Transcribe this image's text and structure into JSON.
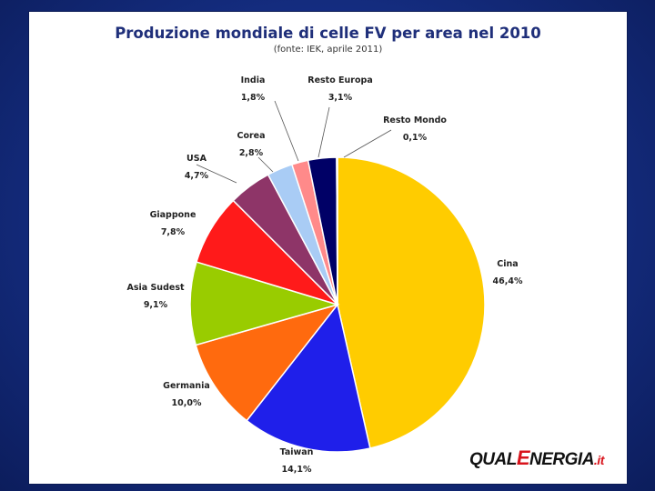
{
  "chart_data": {
    "type": "pie",
    "title": "Produzione mondiale di celle FV per area nel 2010",
    "subtitle": "(fonte: IEK, aprile 2011)",
    "slices": [
      {
        "name": "Cina",
        "value": 46.4,
        "label": "46,4%",
        "color": "#FFCC00"
      },
      {
        "name": "Taiwan",
        "value": 14.1,
        "label": "14,1%",
        "color": "#1F1FEA"
      },
      {
        "name": "Germania",
        "value": 10.0,
        "label": "10,0%",
        "color": "#FF6A0E"
      },
      {
        "name": "Asia Sudest",
        "value": 9.1,
        "label": "9,1%",
        "color": "#99CC00"
      },
      {
        "name": "Giappone",
        "value": 7.8,
        "label": "7,8%",
        "color": "#FF1A1A"
      },
      {
        "name": "USA",
        "value": 4.7,
        "label": "4,7%",
        "color": "#8E3568"
      },
      {
        "name": "Corea",
        "value": 2.8,
        "label": "2,8%",
        "color": "#A9CCF5"
      },
      {
        "name": "India",
        "value": 1.8,
        "label": "1,8%",
        "color": "#FF8A8A"
      },
      {
        "name": "Resto Europa",
        "value": 3.1,
        "label": "3,1%",
        "color": "#000066"
      },
      {
        "name": "Resto Mondo",
        "value": 0.1,
        "label": "0,1%",
        "color": "#000033"
      }
    ]
  },
  "logo": {
    "part1": "QUAL",
    "part2": "E",
    "part3": "NERGIA",
    "part4": ".it"
  }
}
